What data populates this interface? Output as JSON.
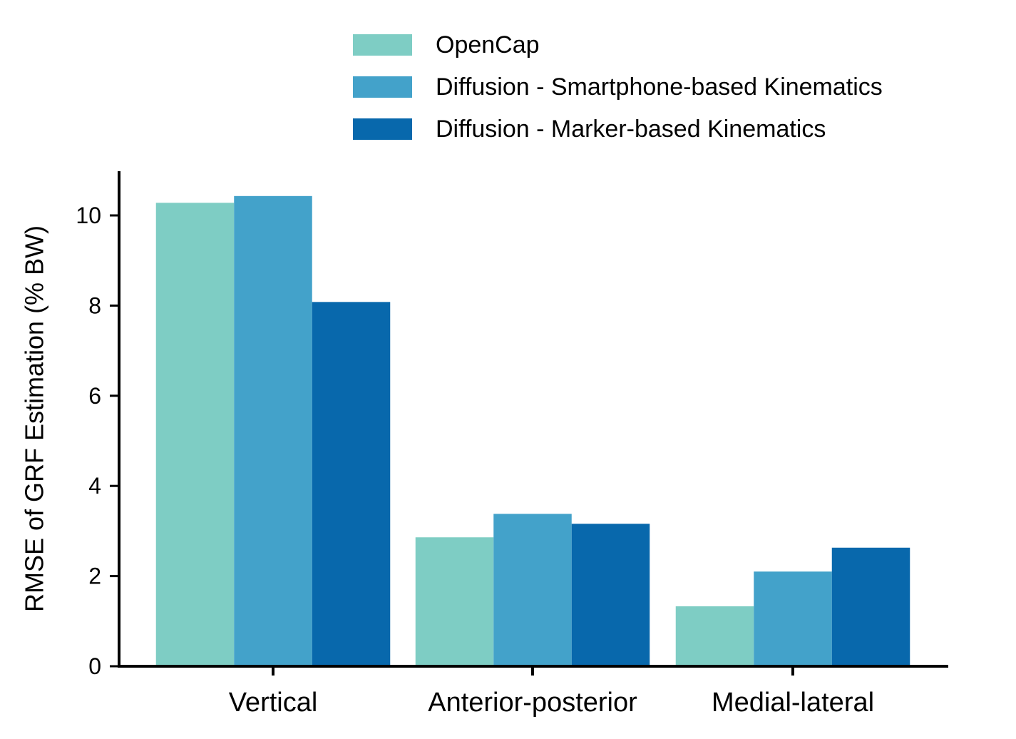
{
  "chart_data": {
    "type": "bar",
    "categories": [
      "Vertical",
      "Anterior-posterior",
      "Medial-lateral"
    ],
    "series": [
      {
        "name": "OpenCap",
        "color": "#7ECDC4",
        "values": [
          10.28,
          2.86,
          1.33
        ]
      },
      {
        "name": "Diffusion - Smartphone-based Kinematics",
        "color": "#43A2CA",
        "values": [
          10.43,
          3.38,
          2.1
        ]
      },
      {
        "name": "Diffusion - Marker-based Kinematics",
        "color": "#0868AC",
        "values": [
          8.08,
          3.16,
          2.63
        ]
      }
    ],
    "xlabel": "",
    "ylabel": "RMSE of GRF Estimation (% BW)",
    "ylim": [
      0,
      11
    ],
    "yticks": [
      0,
      2,
      4,
      6,
      8,
      10
    ],
    "grid": false,
    "legend_position": "top"
  }
}
